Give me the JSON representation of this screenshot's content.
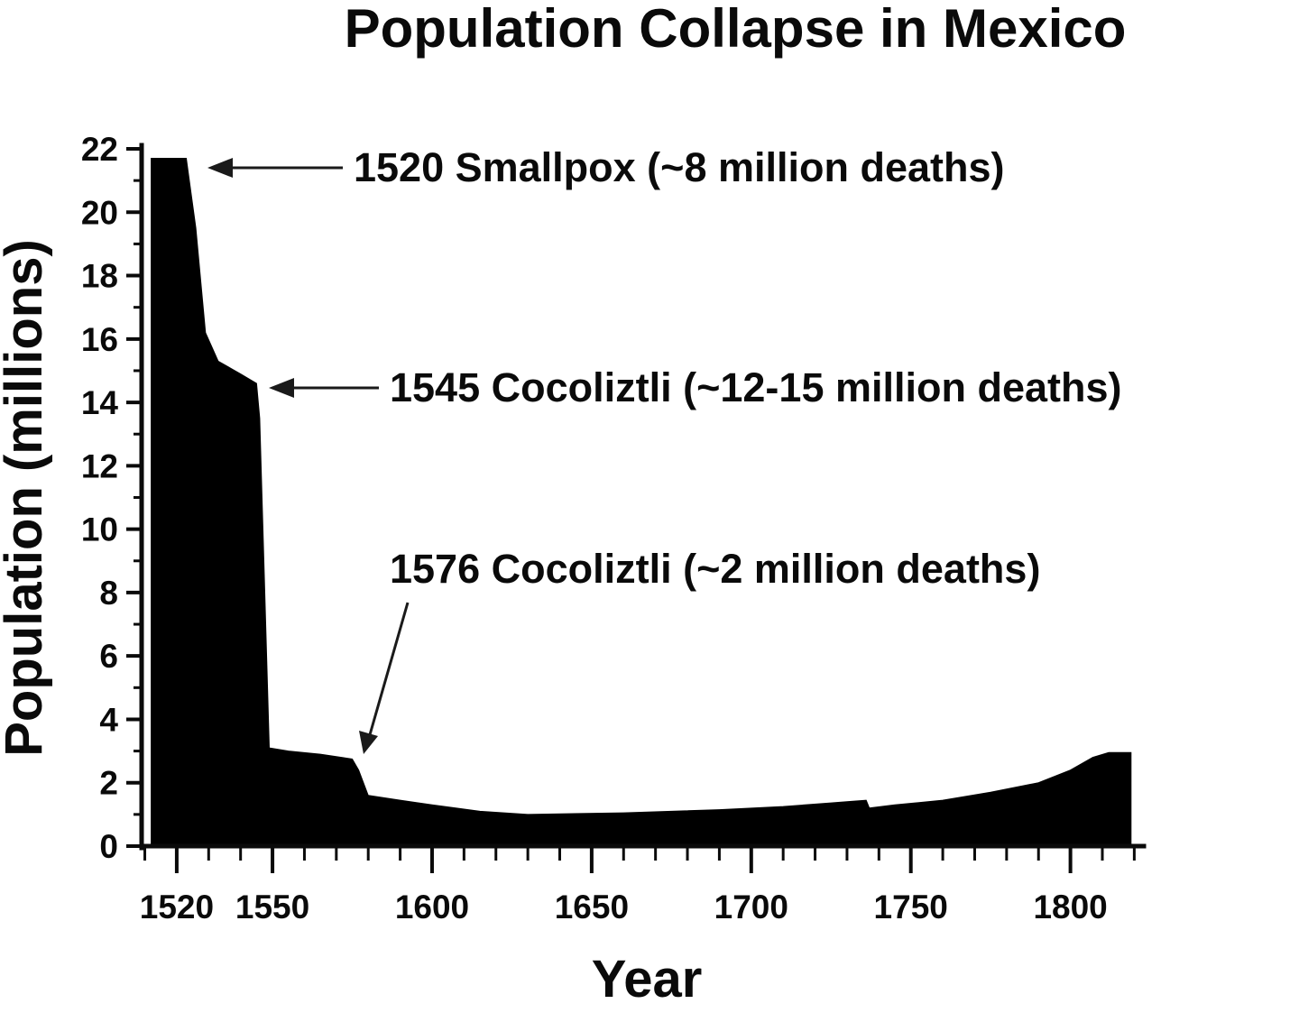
{
  "chart_data": {
    "type": "area",
    "title": "Population Collapse in Mexico",
    "xlabel": "Year",
    "ylabel": "Population (millions)",
    "x_range": [
      1509,
      1823
    ],
    "y_range": [
      0,
      22
    ],
    "x_major_ticks": [
      1520,
      1550,
      1600,
      1650,
      1700,
      1750,
      1800
    ],
    "x_minor_step": 10,
    "y_major_step": 2,
    "y_minor_step": 1,
    "fill_color": "#000000",
    "background_color": "#ffffff",
    "points": [
      [
        1512,
        21.7
      ],
      [
        1523,
        21.7
      ],
      [
        1526,
        19.5
      ],
      [
        1529,
        16.2
      ],
      [
        1533,
        15.3
      ],
      [
        1540,
        14.9
      ],
      [
        1545,
        14.6
      ],
      [
        1546,
        13.5
      ],
      [
        1549,
        3.1
      ],
      [
        1555,
        3.0
      ],
      [
        1565,
        2.9
      ],
      [
        1575,
        2.75
      ],
      [
        1577,
        2.4
      ],
      [
        1580,
        1.6
      ],
      [
        1590,
        1.45
      ],
      [
        1600,
        1.3
      ],
      [
        1615,
        1.1
      ],
      [
        1630,
        1.0
      ],
      [
        1660,
        1.05
      ],
      [
        1690,
        1.15
      ],
      [
        1710,
        1.25
      ],
      [
        1730,
        1.4
      ],
      [
        1736,
        1.45
      ],
      [
        1737,
        1.2
      ],
      [
        1745,
        1.3
      ],
      [
        1760,
        1.45
      ],
      [
        1775,
        1.7
      ],
      [
        1790,
        2.0
      ],
      [
        1800,
        2.4
      ],
      [
        1807,
        2.8
      ],
      [
        1812,
        2.95
      ],
      [
        1819,
        2.95
      ]
    ],
    "annotations": [
      {
        "label": "1520  Smallpox (~8 million deaths)",
        "target_year": 1520,
        "target_value": 21.7
      },
      {
        "label": "1545  Cocoliztli (~12-15 million deaths)",
        "target_year": 1545,
        "target_value": 14.5
      },
      {
        "label": "1576  Cocoliztli (~2 million deaths)",
        "target_year": 1576,
        "target_value": 2.8
      }
    ],
    "legend": "none",
    "grid": "off"
  }
}
